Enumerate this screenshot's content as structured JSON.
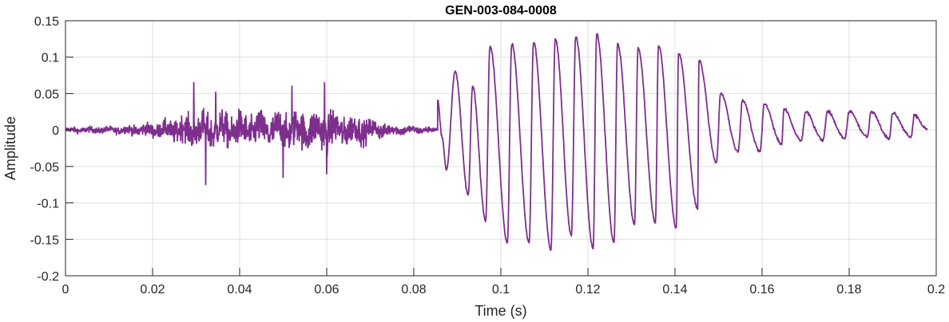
{
  "chart_data": {
    "type": "line",
    "title": "GEN-003-084-0008",
    "xlabel": "Time (s)",
    "ylabel": "Amplitude",
    "xlim": [
      0,
      0.2
    ],
    "ylim": [
      -0.2,
      0.15
    ],
    "grid": true,
    "x_ticks": [
      0,
      0.02,
      0.04,
      0.06,
      0.08,
      0.1,
      0.12,
      0.14,
      0.16,
      0.18,
      0.2
    ],
    "x_tick_labels": [
      "0",
      "0.02",
      "0.04",
      "0.06",
      "0.08",
      "0.1",
      "0.12",
      "0.14",
      "0.16",
      "0.18",
      "0.2"
    ],
    "y_ticks": [
      -0.2,
      -0.15,
      -0.1,
      -0.05,
      0,
      0.05,
      0.1,
      0.15
    ],
    "y_tick_labels": [
      "-0.2",
      "-0.15",
      "-0.1",
      "-0.05",
      "0",
      "0.05",
      "0.1",
      "0.15"
    ],
    "series": [
      {
        "color": "#7E2F8E",
        "x_start": 0,
        "x_end": 0.198,
        "noise_envelope": [
          {
            "t": 0.0,
            "amp": 0.006
          },
          {
            "t": 0.012,
            "amp": 0.008
          },
          {
            "t": 0.022,
            "amp": 0.018
          },
          {
            "t": 0.03,
            "amp": 0.04
          },
          {
            "t": 0.045,
            "amp": 0.04
          },
          {
            "t": 0.06,
            "amp": 0.045
          },
          {
            "t": 0.068,
            "amp": 0.03
          },
          {
            "t": 0.075,
            "amp": 0.012
          },
          {
            "t": 0.085,
            "amp": 0.006
          }
        ],
        "noise_spikes": [
          {
            "t": 0.0295,
            "y": 0.065
          },
          {
            "t": 0.0322,
            "y": -0.075
          },
          {
            "t": 0.0345,
            "y": 0.052
          },
          {
            "t": 0.05,
            "y": -0.065
          },
          {
            "t": 0.052,
            "y": 0.06
          },
          {
            "t": 0.0595,
            "y": 0.065
          },
          {
            "t": 0.06,
            "y": -0.06
          }
        ],
        "voiced_cycles": [
          {
            "t_peak": 0.0855,
            "peak": 0.04,
            "t_trough": 0.0865,
            "trough": -0.01
          },
          {
            "t_peak": 0.0895,
            "peak": 0.08,
            "t_trough": 0.0875,
            "trough": -0.055
          },
          {
            "t_peak": 0.0935,
            "peak": 0.06,
            "t_trough": 0.0925,
            "trough": -0.09
          },
          {
            "t_peak": 0.0975,
            "peak": 0.115,
            "t_trough": 0.0965,
            "trough": -0.125
          },
          {
            "t_peak": 0.1025,
            "peak": 0.118,
            "t_trough": 0.1015,
            "trough": -0.155
          },
          {
            "t_peak": 0.1075,
            "peak": 0.12,
            "t_trough": 0.1065,
            "trough": -0.155
          },
          {
            "t_peak": 0.1125,
            "peak": 0.125,
            "t_trough": 0.1115,
            "trough": -0.165
          },
          {
            "t_peak": 0.1172,
            "peak": 0.128,
            "t_trough": 0.1162,
            "trough": -0.145
          },
          {
            "t_peak": 0.122,
            "peak": 0.132,
            "t_trough": 0.1212,
            "trough": -0.163
          },
          {
            "t_peak": 0.1268,
            "peak": 0.118,
            "t_trough": 0.126,
            "trough": -0.155
          },
          {
            "t_peak": 0.1315,
            "peak": 0.112,
            "t_trough": 0.1307,
            "trough": -0.13
          },
          {
            "t_peak": 0.1362,
            "peak": 0.115,
            "t_trough": 0.1355,
            "trough": -0.128
          },
          {
            "t_peak": 0.1408,
            "peak": 0.105,
            "t_trough": 0.1403,
            "trough": -0.135
          },
          {
            "t_peak": 0.1455,
            "peak": 0.095,
            "t_trough": 0.1452,
            "trough": -0.108
          },
          {
            "t_peak": 0.1505,
            "peak": 0.05,
            "t_trough": 0.1495,
            "trough": -0.045
          },
          {
            "t_peak": 0.1555,
            "peak": 0.04,
            "t_trough": 0.1545,
            "trough": -0.03
          },
          {
            "t_peak": 0.1605,
            "peak": 0.035,
            "t_trough": 0.1595,
            "trough": -0.03
          },
          {
            "t_peak": 0.165,
            "peak": 0.028,
            "t_trough": 0.1645,
            "trough": -0.02
          },
          {
            "t_peak": 0.17,
            "peak": 0.025,
            "t_trough": 0.169,
            "trough": -0.015
          },
          {
            "t_peak": 0.175,
            "peak": 0.025,
            "t_trough": 0.174,
            "trough": -0.015
          },
          {
            "t_peak": 0.18,
            "peak": 0.025,
            "t_trough": 0.179,
            "trough": -0.012
          },
          {
            "t_peak": 0.185,
            "peak": 0.025,
            "t_trough": 0.1842,
            "trough": -0.01
          },
          {
            "t_peak": 0.19,
            "peak": 0.023,
            "t_trough": 0.1892,
            "trough": -0.012
          },
          {
            "t_peak": 0.195,
            "peak": 0.02,
            "t_trough": 0.1942,
            "trough": -0.01
          }
        ]
      }
    ]
  }
}
